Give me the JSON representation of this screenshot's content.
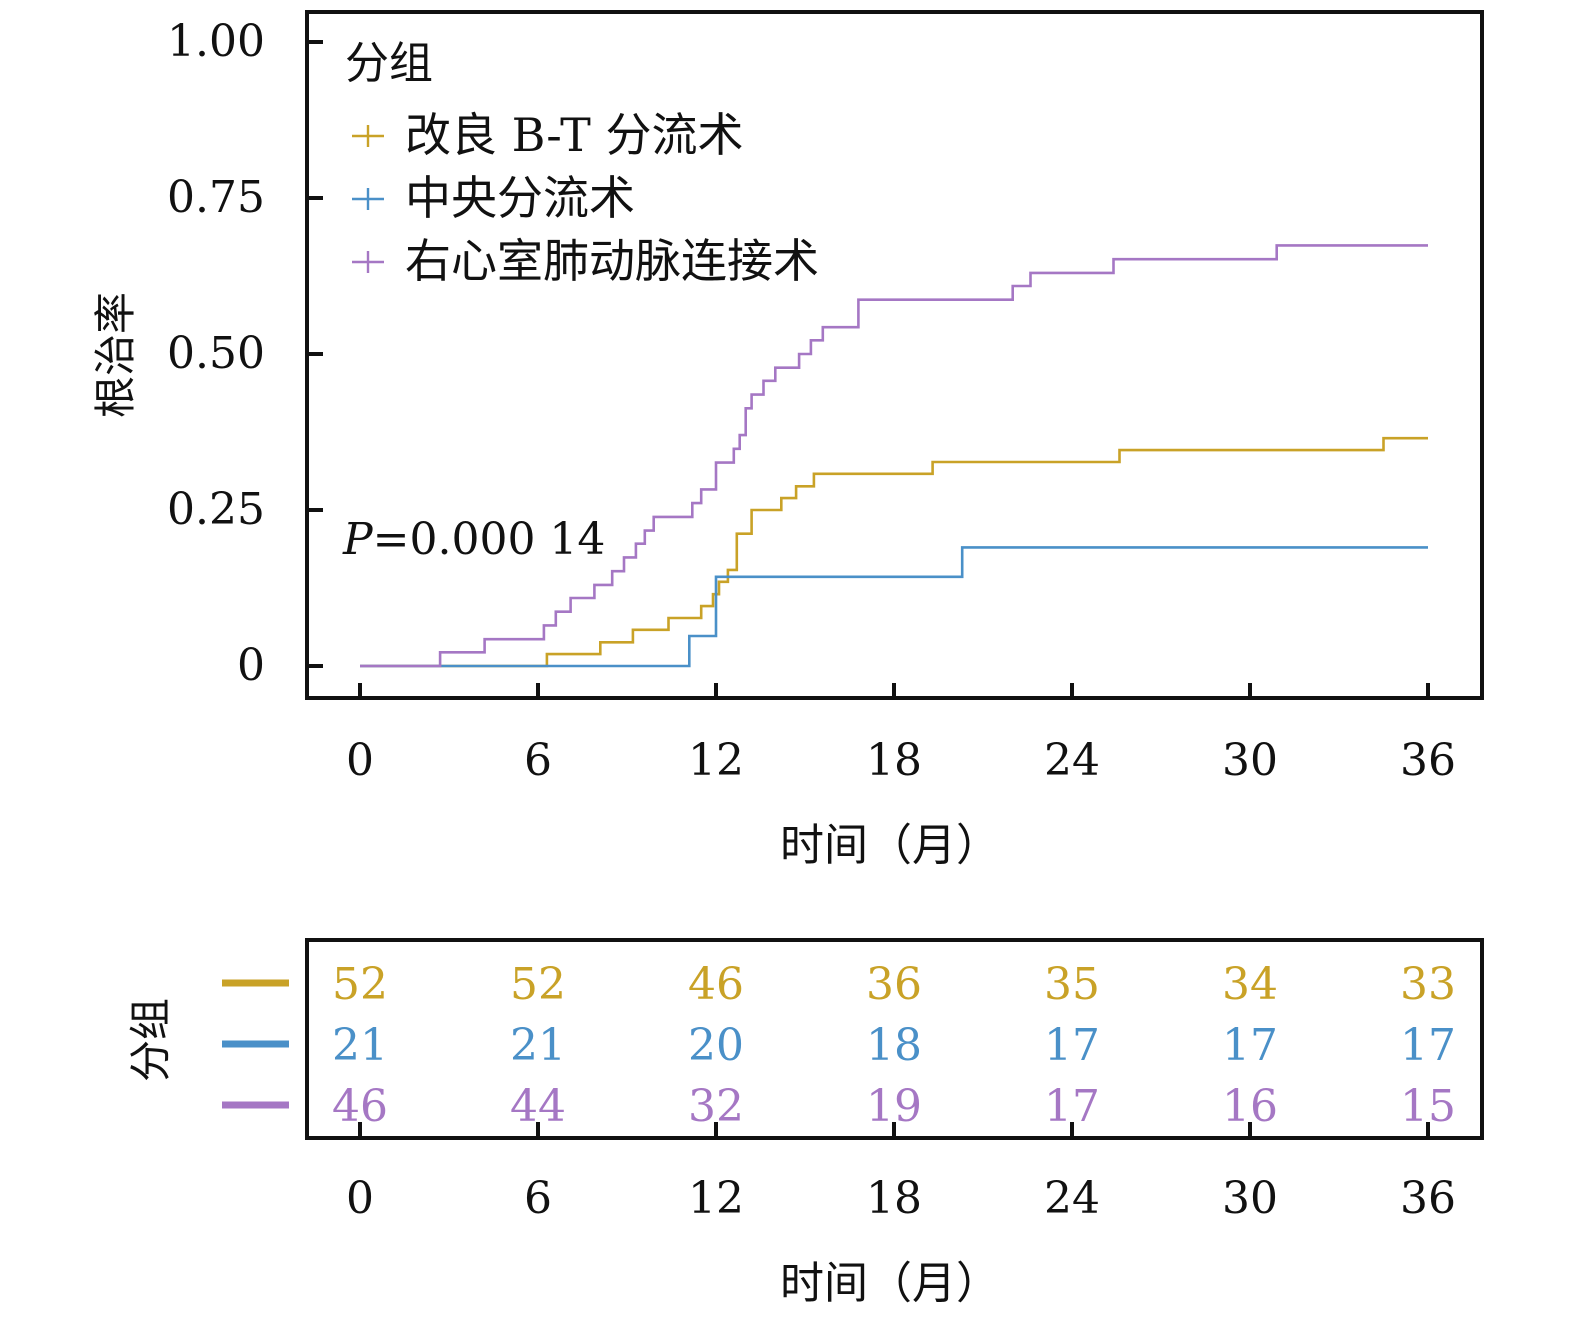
{
  "chart_data": [
    {
      "type": "line",
      "subtype": "kaplan-meier-step",
      "title": "",
      "xlabel": "时间（月）",
      "ylabel": "根治率",
      "xlim": [
        0,
        36
      ],
      "ylim": [
        0,
        1
      ],
      "x_ticks": [
        "0",
        "6",
        "12",
        "18",
        "24",
        "30",
        "36"
      ],
      "y_ticks": [
        "0",
        "0.25",
        "0.50",
        "0.75",
        "1.00"
      ],
      "legend_title": "分组",
      "legend_position": "top-left",
      "annotation": {
        "italic": "P",
        "text": "=0.000 14"
      },
      "series": [
        {
          "name": "改良 B-T 分流术",
          "color": "#c9a227",
          "steps": [
            [
              0,
              0
            ],
            [
              6.3,
              0.019
            ],
            [
              8.1,
              0.038
            ],
            [
              9.2,
              0.058
            ],
            [
              10.4,
              0.077
            ],
            [
              11.5,
              0.096
            ],
            [
              11.9,
              0.115
            ],
            [
              12.1,
              0.135
            ],
            [
              12.4,
              0.154
            ],
            [
              12.7,
              0.212
            ],
            [
              13.2,
              0.25
            ],
            [
              14.2,
              0.269
            ],
            [
              14.7,
              0.288
            ],
            [
              15.3,
              0.308
            ],
            [
              19.3,
              0.327
            ],
            [
              25.6,
              0.346
            ],
            [
              34.5,
              0.365
            ],
            [
              36,
              0.365
            ]
          ]
        },
        {
          "name": "中央分流术",
          "color": "#4a90c8",
          "steps": [
            [
              0,
              0
            ],
            [
              11.1,
              0.048
            ],
            [
              12.0,
              0.143
            ],
            [
              20.3,
              0.19
            ],
            [
              36,
              0.19
            ]
          ]
        },
        {
          "name": "右心室肺动脉连接术",
          "color": "#a577c4",
          "steps": [
            [
              0,
              0
            ],
            [
              2.7,
              0.022
            ],
            [
              4.2,
              0.043
            ],
            [
              6.2,
              0.065
            ],
            [
              6.6,
              0.087
            ],
            [
              7.1,
              0.109
            ],
            [
              7.9,
              0.13
            ],
            [
              8.5,
              0.152
            ],
            [
              8.9,
              0.174
            ],
            [
              9.3,
              0.196
            ],
            [
              9.6,
              0.217
            ],
            [
              9.9,
              0.239
            ],
            [
              11.2,
              0.261
            ],
            [
              11.5,
              0.283
            ],
            [
              12.0,
              0.326
            ],
            [
              12.6,
              0.348
            ],
            [
              12.8,
              0.37
            ],
            [
              13.0,
              0.413
            ],
            [
              13.2,
              0.435
            ],
            [
              13.6,
              0.457
            ],
            [
              14.0,
              0.478
            ],
            [
              14.8,
              0.5
            ],
            [
              15.2,
              0.522
            ],
            [
              15.6,
              0.543
            ],
            [
              16.8,
              0.587
            ],
            [
              22.0,
              0.609
            ],
            [
              22.6,
              0.63
            ],
            [
              25.4,
              0.652
            ],
            [
              30.9,
              0.674
            ],
            [
              36,
              0.674
            ]
          ]
        }
      ]
    },
    {
      "type": "table",
      "title": "",
      "xlabel": "时间（月）",
      "ylabel": "分组",
      "x_ticks": [
        "0",
        "6",
        "12",
        "18",
        "24",
        "30",
        "36"
      ],
      "rows": [
        {
          "color": "#c9a227",
          "values": [
            "52",
            "52",
            "46",
            "36",
            "35",
            "34",
            "33"
          ]
        },
        {
          "color": "#4a90c8",
          "values": [
            "21",
            "21",
            "20",
            "18",
            "17",
            "17",
            "17"
          ]
        },
        {
          "color": "#a577c4",
          "values": [
            "46",
            "44",
            "32",
            "19",
            "17",
            "16",
            "15"
          ]
        }
      ]
    }
  ]
}
